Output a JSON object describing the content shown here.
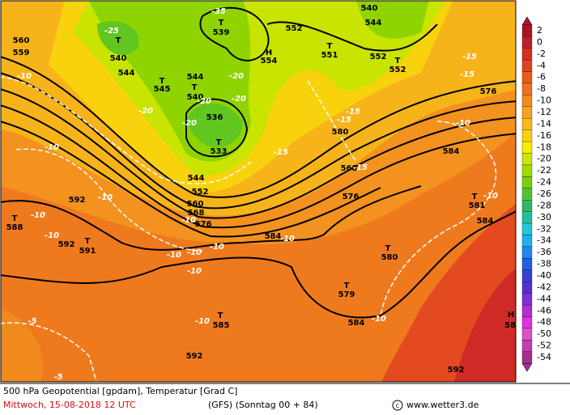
{
  "map": {
    "labels": [
      "560",
      "559",
      "-25",
      "T",
      "540",
      "544",
      "-35",
      "T",
      "539",
      "552",
      "H",
      "554",
      "T",
      "551",
      "552",
      "540",
      "544",
      "T",
      "552",
      "-15",
      "-15",
      "576",
      "-10",
      "T",
      "545",
      "544",
      "-20",
      "T",
      "540",
      "-20",
      "-20",
      "-20",
      "536",
      "-20",
      "T",
      "533",
      "-15",
      "-15",
      "580",
      "-10",
      "-10",
      "-15",
      "584",
      "568",
      "-15",
      "544",
      "552",
      "592",
      "-10",
      "560",
      "568",
      "576",
      "-10",
      "576",
      "-10",
      "T",
      "581",
      "T",
      "588",
      "-10",
      "-10",
      "584",
      "592",
      "T",
      "591",
      "584",
      "-10",
      "-10",
      "-10",
      "-10",
      "T",
      "580",
      "-10",
      "T",
      "579",
      "-10",
      "T",
      "585",
      "584",
      "-10",
      "H",
      "58",
      "-5",
      "592",
      "592",
      "-5"
    ]
  },
  "colorbar": {
    "labels": [
      2,
      0,
      -2,
      -4,
      -6,
      -8,
      -10,
      -12,
      -14,
      -16,
      -18,
      -20,
      -22,
      -24,
      -26,
      -28,
      -30,
      -32,
      -34,
      -36,
      -38,
      -40,
      -42,
      -44,
      -46,
      -48,
      -50,
      -52,
      -54
    ],
    "colors": [
      "#a8142a",
      "#c41e2a",
      "#d82e22",
      "#e24420",
      "#e95c1e",
      "#ef731e",
      "#f38a1e",
      "#f6a21e",
      "#f9b918",
      "#fcd010",
      "#f6ee00",
      "#cce600",
      "#a2da00",
      "#7ad010",
      "#52c232",
      "#30b862",
      "#22c0a2",
      "#20c8d8",
      "#20b0f0",
      "#2088f0",
      "#2060e0",
      "#3440d0",
      "#5430d0",
      "#8030d0",
      "#b030d0",
      "#e030e0",
      "#e050c8",
      "#c040b0",
      "#a03090"
    ]
  },
  "footer": {
    "line1": "500 hPa Geopotential [gpdam], Temperatur [Grad C]",
    "date": "Mittwoch, 15-08-2018  12 UTC",
    "run": "(GFS)  (Sonntag 00 + 84)",
    "credit": "www.wetter3.de"
  }
}
